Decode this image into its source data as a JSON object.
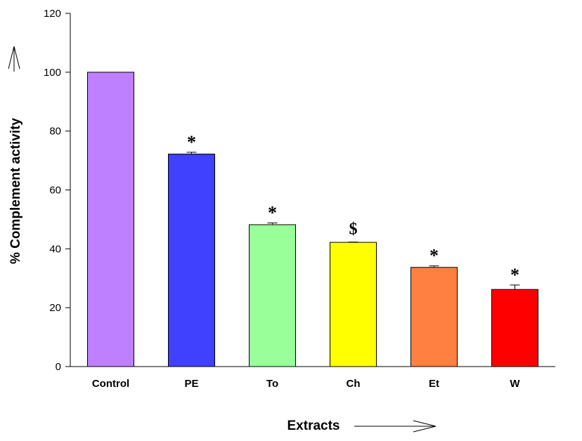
{
  "chart_data": {
    "type": "bar",
    "categories": [
      "Control",
      "PE",
      "To",
      "Ch",
      "Et",
      "W"
    ],
    "values": [
      100,
      72.2,
      48.2,
      42.2,
      33.7,
      26.2
    ],
    "errors": [
      0,
      0.6,
      0.6,
      0.1,
      0.5,
      1.5
    ],
    "annotations": [
      "",
      "*",
      "*",
      "$",
      "*",
      "*"
    ],
    "colors": [
      "#bf80ff",
      "#4040ff",
      "#99ff99",
      "#ffff00",
      "#ff8040",
      "#ff0000"
    ],
    "xlabel": "Extracts",
    "ylabel": "% Complement activity",
    "ylim": [
      0,
      120
    ],
    "yticks": [
      0,
      20,
      40,
      60,
      80,
      100,
      120
    ],
    "grid": false,
    "axis_arrows": true
  }
}
